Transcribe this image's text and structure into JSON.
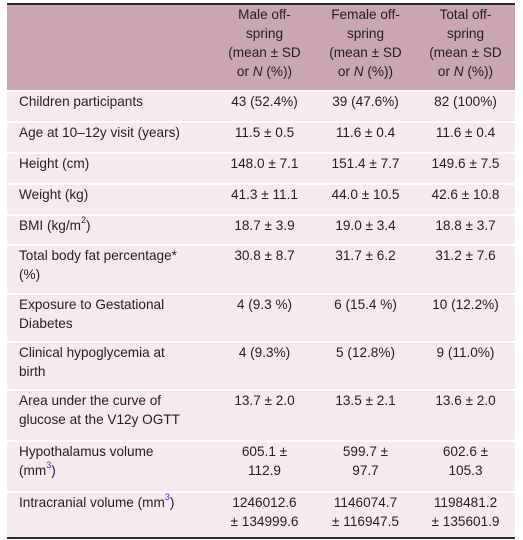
{
  "columns": {
    "male": [
      "Male off-",
      "spring",
      "(mean ± SD",
      "or ",
      "N",
      " (%))"
    ],
    "female": [
      "Female off-",
      "spring",
      "(mean ± SD",
      "or ",
      "N",
      " (%))"
    ],
    "total": [
      "Total off-",
      "spring",
      "(mean ± SD",
      "or ",
      "N",
      " (%))"
    ]
  },
  "rows": [
    {
      "label": "Children participants",
      "male": "43 (52.4%)",
      "female": "39 (47.6%)",
      "total": "82 (100%)"
    },
    {
      "label": "Age at 10–12y visit (years)",
      "male": "11.5 ± 0.5",
      "female": "11.6 ± 0.4",
      "total": "11.6 ± 0.4"
    },
    {
      "label": "Height (cm)",
      "male": "148.0 ± 7.1",
      "female": "151.4 ± 7.7",
      "total": "149.6 ± 7.5"
    },
    {
      "label": "Weight (kg)",
      "male": "41.3 ± 11.1",
      "female": "44.0 ± 10.5",
      "total": "42.6 ± 10.8"
    },
    {
      "label": "BMI (kg/m",
      "label_sup": "2",
      "label_end": ")",
      "male": "18.7 ± 3.9",
      "female": "19.0 ± 3.4",
      "total": "18.8 ± 3.7"
    },
    {
      "label": "Total body fat percentage*",
      "label_line2": "(%)",
      "male": "30.8 ± 8.7",
      "female": "31.7 ± 6.2",
      "total": "31.2 ± 7.6"
    },
    {
      "label": "Exposure to Gestational",
      "label_line2": "Diabetes",
      "male": "4 (9.3 %)",
      "female": "6 (15.4 %)",
      "total": "10 (12.2%)"
    },
    {
      "label": "Clinical hypoglycemia at",
      "label_line2": "birth",
      "male": "4 (9.3%)",
      "female": "5 (12.8%)",
      "total": "9 (11.0%)"
    },
    {
      "label": "Area under the curve of",
      "label_line2": "glucose at the V12y OGTT",
      "male": "13.7 ± 2.0",
      "female": "13.5 ± 2.1",
      "total": "13.6 ± 2.0"
    },
    {
      "label": "Hypothalamus volume",
      "label_line2": "(mm",
      "label_sup": "3",
      "label_end": ")",
      "male": "605.1 ±",
      "male_line2": "112.9",
      "female": "599.7 ±",
      "female_line2": "97.7",
      "total": "602.6 ±",
      "total_line2": "105.3"
    },
    {
      "label": "Intracranial volume (mm",
      "label_sup": "3",
      "label_end": ")",
      "male": "1246012.6",
      "male_line2": "± 134999.6",
      "female": "1146074.7",
      "female_line2": "± 116947.5",
      "total": "1198481.2",
      "total_line2": "± 135601.9"
    }
  ]
}
